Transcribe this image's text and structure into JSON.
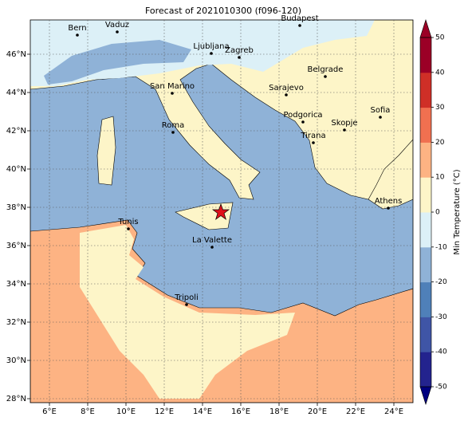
{
  "title": "Forecast of 2021010300 (f096-120)",
  "map": {
    "lon_ticks": [
      {
        "value": 6,
        "label": "6°E"
      },
      {
        "value": 8,
        "label": "8°E"
      },
      {
        "value": 10,
        "label": "10°E"
      },
      {
        "value": 12,
        "label": "12°E"
      },
      {
        "value": 14,
        "label": "14°E"
      },
      {
        "value": 16,
        "label": "16°E"
      },
      {
        "value": 18,
        "label": "18°E"
      },
      {
        "value": 20,
        "label": "20°E"
      },
      {
        "value": 22,
        "label": "22°E"
      },
      {
        "value": 24,
        "label": "24°E"
      }
    ],
    "lat_ticks": [
      {
        "value": 28,
        "label": "28°N"
      },
      {
        "value": 30,
        "label": "30°N"
      },
      {
        "value": 32,
        "label": "32°N"
      },
      {
        "value": 34,
        "label": "34°N"
      },
      {
        "value": 36,
        "label": "36°N"
      },
      {
        "value": 38,
        "label": "38°N"
      },
      {
        "value": 40,
        "label": "40°N"
      },
      {
        "value": 42,
        "label": "42°N"
      },
      {
        "value": 44,
        "label": "44°N"
      },
      {
        "value": 46,
        "label": "46°N"
      }
    ],
    "cities": [
      "Bern",
      "Vaduz",
      "Budapest",
      "Ljubljana",
      "Zagreb",
      "Belgrade",
      "San Marino",
      "Sarajevo",
      "Sofia",
      "Podgorica",
      "Skopje",
      "Roma",
      "Tirana",
      "Athens",
      "Tunis",
      "La Valette",
      "Tripoli"
    ]
  },
  "colorbar": {
    "label": "Min Temperature (°C)",
    "ticks": [
      -50,
      -40,
      -30,
      -20,
      -10,
      0,
      10,
      20,
      30,
      40,
      50
    ],
    "colors": [
      "#23238e",
      "#3f55a6",
      "#4f80b9",
      "#8fb2d7",
      "#dcf0f7",
      "#fdf5c8",
      "#fdb383",
      "#f07050",
      "#cf2f27",
      "#9b0026"
    ]
  }
}
